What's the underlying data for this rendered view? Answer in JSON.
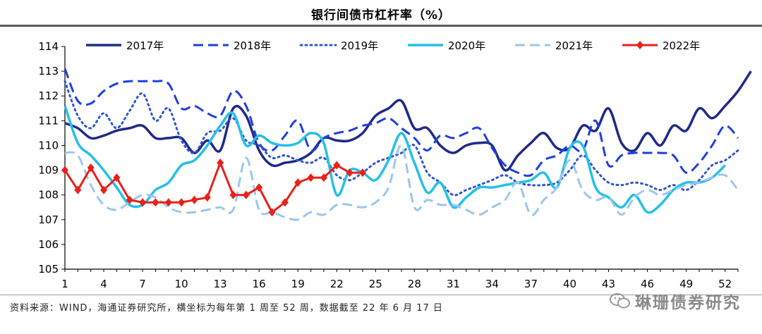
{
  "header": {
    "title": "银行间债市杠杆率（%）"
  },
  "footer": {
    "source": "资料来源：WIND，海通证券研究所，横坐标为每年第 1 周至 52 周，数据截至 22 年 6 月 17 日",
    "watermark": "琳珊债券研究"
  },
  "chart_data": {
    "type": "line",
    "title": "银行间债市杠杆率（%）",
    "xlabel": "",
    "ylabel": "",
    "xlim": [
      1,
      53
    ],
    "ylim": [
      105,
      114
    ],
    "x_ticks": [
      1,
      4,
      7,
      10,
      13,
      16,
      19,
      22,
      25,
      28,
      31,
      34,
      37,
      40,
      43,
      46,
      49,
      52
    ],
    "y_ticks": [
      105,
      106,
      107,
      108,
      109,
      110,
      111,
      112,
      113,
      114
    ],
    "grid": false,
    "legend_position": "top",
    "series": [
      {
        "name": "2017年",
        "color": "#1f2a86",
        "style": "solid",
        "width": 3.5,
        "marker": false,
        "values": [
          110.9,
          110.7,
          110.3,
          110.4,
          110.6,
          110.7,
          110.8,
          110.3,
          110.3,
          110.3,
          109.7,
          110.2,
          109.8,
          111.5,
          111.2,
          109.8,
          109.2,
          109.3,
          109.4,
          109.7,
          110.3,
          110.2,
          110.2,
          110.5,
          111.2,
          111.5,
          111.8,
          110.7,
          110.7,
          110.0,
          109.7,
          110.0,
          110.1,
          110.0,
          109.0,
          109.6,
          110.1,
          110.5,
          109.9,
          109.9,
          110.8,
          110.6,
          111.5,
          110.1,
          109.8,
          110.5,
          110.0,
          110.8,
          110.6,
          111.5,
          111.1,
          111.6,
          112.2,
          113.0
        ]
      },
      {
        "name": "2018年",
        "color": "#1f3fe0",
        "style": "dash",
        "width": 3,
        "marker": false,
        "values": [
          113.1,
          111.8,
          111.7,
          112.2,
          112.5,
          112.6,
          112.6,
          112.6,
          112.5,
          111.5,
          111.6,
          111.3,
          111.2,
          112.2,
          111.6,
          110.1,
          109.8,
          110.4,
          111.0,
          109.8,
          110.3,
          110.5,
          110.6,
          110.8,
          110.9,
          111.1,
          110.7,
          110.3,
          109.8,
          110.4,
          110.3,
          110.5,
          110.7,
          109.9,
          109.2,
          108.9,
          108.8,
          109.4,
          109.6,
          110.0,
          109.8,
          111.0,
          109.2,
          109.6,
          109.7,
          109.7,
          109.7,
          109.6,
          108.9,
          109.3,
          110.0,
          110.8,
          110.3
        ]
      },
      {
        "name": "2019年",
        "color": "#2f55d4",
        "style": "dot",
        "width": 3,
        "marker": false,
        "values": [
          112.6,
          111.2,
          110.7,
          111.3,
          110.7,
          111.4,
          112.1,
          111.0,
          111.5,
          110.2,
          109.7,
          110.5,
          110.6,
          111.1,
          110.2,
          110.0,
          109.5,
          109.6,
          109.4,
          109.3,
          109.5,
          108.8,
          108.6,
          108.9,
          109.3,
          109.5,
          109.7,
          110.0,
          108.9,
          108.5,
          108.0,
          108.2,
          108.4,
          108.6,
          108.8,
          108.5,
          108.4,
          108.4,
          108.5,
          109.0,
          109.6,
          109.0,
          108.5,
          108.4,
          108.5,
          108.4,
          108.2,
          108.4,
          108.2,
          108.6,
          109.2,
          109.4,
          109.8
        ]
      },
      {
        "name": "2020年",
        "color": "#25bfe8",
        "style": "solid",
        "width": 3.5,
        "marker": false,
        "values": [
          111.6,
          110.1,
          109.6,
          109.0,
          108.3,
          107.6,
          107.6,
          108.2,
          108.5,
          109.2,
          109.4,
          110.0,
          110.8,
          111.3,
          110.0,
          110.4,
          110.1,
          110.0,
          110.1,
          110.5,
          110.1,
          108.0,
          109.0,
          108.9,
          108.6,
          109.4,
          110.5,
          109.3,
          108.1,
          108.5,
          107.5,
          107.9,
          108.3,
          108.3,
          108.4,
          108.5,
          108.6,
          108.9,
          108.3,
          109.9,
          110.0,
          108.3,
          107.9,
          107.5,
          108.0,
          107.3,
          107.6,
          108.2,
          108.5,
          108.5,
          108.7,
          109.2
        ]
      },
      {
        "name": "2021年",
        "color": "#9dc6ee",
        "style": "dash",
        "width": 3,
        "marker": false,
        "values": [
          109.7,
          109.6,
          108.4,
          107.6,
          107.4,
          107.7,
          108.0,
          107.9,
          107.5,
          107.3,
          107.3,
          107.4,
          107.5,
          107.4,
          109.5,
          107.4,
          107.3,
          107.1,
          107.0,
          107.3,
          107.2,
          107.6,
          107.6,
          107.5,
          107.7,
          108.3,
          110.0,
          107.5,
          107.8,
          107.6,
          107.6,
          107.4,
          107.2,
          107.5,
          107.8,
          108.5,
          107.2,
          107.8,
          108.3,
          109.4,
          108.2,
          107.8,
          107.9,
          107.2,
          107.9,
          108.2,
          108.0,
          108.2,
          108.4,
          108.5,
          108.7,
          108.8,
          108.2
        ]
      },
      {
        "name": "2022年",
        "color": "#e8211a",
        "style": "solid",
        "width": 3,
        "marker": true,
        "values": [
          109.0,
          108.2,
          109.1,
          108.2,
          108.7,
          107.8,
          107.7,
          107.7,
          107.7,
          107.7,
          107.8,
          107.9,
          109.3,
          108.0,
          108.0,
          108.3,
          107.3,
          107.7,
          108.5,
          108.7,
          108.7,
          109.2,
          108.9,
          108.9
        ]
      }
    ]
  }
}
